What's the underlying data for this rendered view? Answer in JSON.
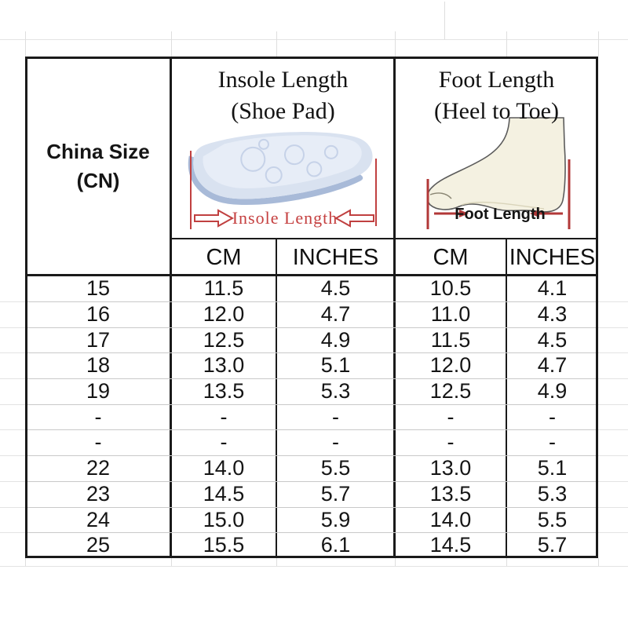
{
  "colors": {
    "border_black": "#1a1a1a",
    "row_separator": "#c9c9c9",
    "margin_gridline": "#e3e3e3",
    "measure_red": "#c04040",
    "insole_fill": "#d9e2f0",
    "insole_shadow": "#a8bad8",
    "insole_highlight": "#e7edf7",
    "foot_fill": "#f4f1e1",
    "foot_outline": "#5b5b5b",
    "text": "#151515"
  },
  "table": {
    "corner": {
      "line1": "China Size",
      "line2": "(CN)"
    },
    "insole": {
      "title1": "Insole Length",
      "title2": "(Shoe Pad)",
      "measure_label": "Insole Length"
    },
    "foot": {
      "title1": "Foot Length",
      "title2": "(Heel to Toe)",
      "measure_label": "Foot Length"
    },
    "subheaders": [
      "CM",
      "INCHES",
      "CM",
      "INCHES"
    ]
  },
  "chart_data": {
    "type": "table",
    "title": "China Size (CN) shoe size conversion chart",
    "column_groups": [
      "China Size (CN)",
      "Insole Length (Shoe Pad)",
      "Foot Length (Heel to Toe)"
    ],
    "columns": [
      "China Size (CN)",
      "Insole Length CM",
      "Insole Length INCHES",
      "Foot Length CM",
      "Foot Length INCHES"
    ],
    "rows": [
      [
        "15",
        "11.5",
        "4.5",
        "10.5",
        "4.1"
      ],
      [
        "16",
        "12.0",
        "4.7",
        "11.0",
        "4.3"
      ],
      [
        "17",
        "12.5",
        "4.9",
        "11.5",
        "4.5"
      ],
      [
        "18",
        "13.0",
        "5.1",
        "12.0",
        "4.7"
      ],
      [
        "19",
        "13.5",
        "5.3",
        "12.5",
        "4.9"
      ],
      [
        "-",
        "-",
        "-",
        "-",
        "-"
      ],
      [
        "-",
        "-",
        "-",
        "-",
        "-"
      ],
      [
        "22",
        "14.0",
        "5.5",
        "13.0",
        "5.1"
      ],
      [
        "23",
        "14.5",
        "5.7",
        "13.5",
        "5.3"
      ],
      [
        "24",
        "15.0",
        "5.9",
        "14.0",
        "5.5"
      ],
      [
        "25",
        "15.5",
        "6.1",
        "14.5",
        "5.7"
      ]
    ]
  }
}
